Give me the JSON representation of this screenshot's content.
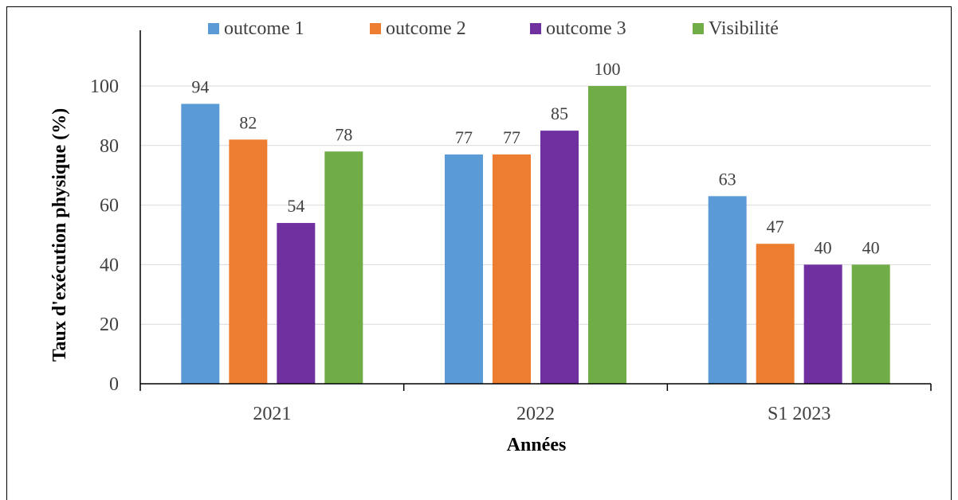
{
  "chart_data": {
    "type": "bar",
    "categories": [
      "2021",
      "2022",
      "S1 2023"
    ],
    "series": [
      {
        "name": "outcome 1",
        "color": "#5b9bd5",
        "values": [
          94,
          77,
          63
        ]
      },
      {
        "name": "outcome 2",
        "color": "#ed7d31",
        "values": [
          82,
          77,
          47
        ]
      },
      {
        "name": "outcome 3",
        "color": "#7030a0",
        "values": [
          54,
          85,
          40
        ]
      },
      {
        "name": "Visibilité",
        "color": "#70ad47",
        "values": [
          78,
          100,
          40
        ]
      }
    ],
    "xlabel": "Années",
    "ylabel": "Taux d'exécution physique (%)",
    "ylim": [
      0,
      100
    ],
    "yticks": [
      0,
      20,
      40,
      60,
      80,
      100
    ],
    "grid": true,
    "legend_position": "top",
    "data_labels": true
  }
}
